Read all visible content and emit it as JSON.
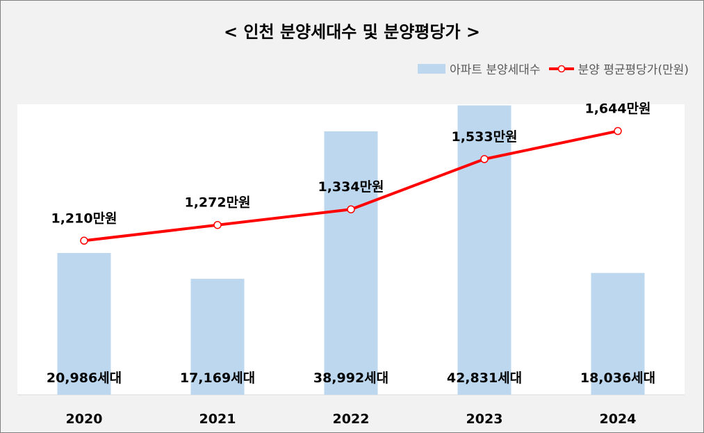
{
  "chart_data": {
    "type": "bar+line",
    "title": "< 인천 분양세대수 및 분양평당가 >",
    "categories": [
      "2020",
      "2021",
      "2022",
      "2023",
      "2024"
    ],
    "series": [
      {
        "name": "아파트 분양세대수",
        "type": "bar",
        "color": "#bdd7ee",
        "values": [
          20986,
          17169,
          38992,
          42831,
          18036
        ],
        "labels": [
          "20,986세대",
          "17,169세대",
          "38,992세대",
          "42,831세대",
          "18,036세대"
        ]
      },
      {
        "name": "분양 평균평당가(만원)",
        "type": "line",
        "color": "#ff0000",
        "values": [
          1210,
          1272,
          1334,
          1533,
          1644
        ],
        "labels": [
          "1,210만원",
          "1,272만원",
          "1,334만원",
          "1,533만원",
          "1,644만원"
        ]
      }
    ],
    "bar_ylim": [
      0,
      43000
    ],
    "line_ylim": [
      600,
      1750
    ],
    "grid": false,
    "legend": "top-right"
  }
}
